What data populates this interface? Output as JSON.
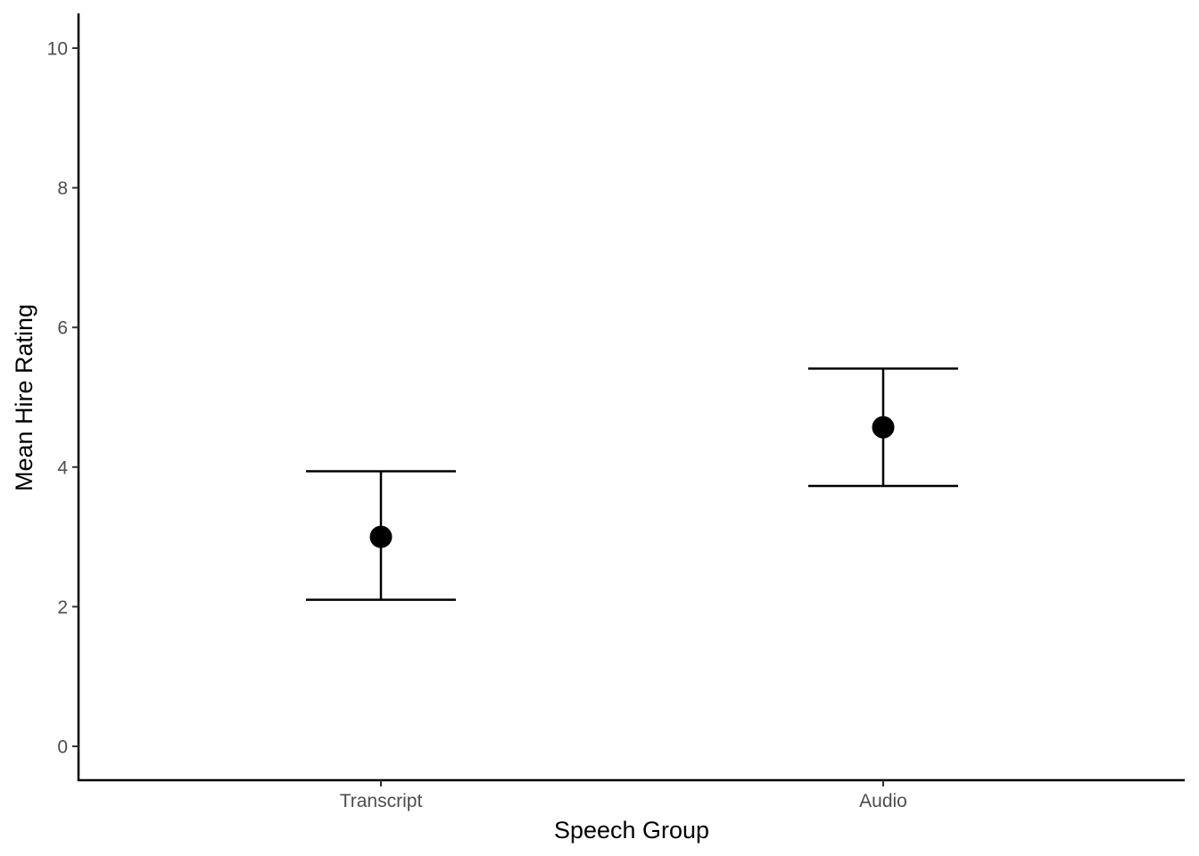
{
  "chart_data": {
    "type": "scatter",
    "subtype": "point-with-error-bars",
    "title": "",
    "xlabel": "Speech Group",
    "ylabel": "Mean Hire Rating",
    "categories": [
      "Transcript",
      "Audio"
    ],
    "values": [
      3.0,
      4.57
    ],
    "error_bars": [
      {
        "category": "Transcript",
        "lower": 2.1,
        "upper": 3.94
      },
      {
        "category": "Audio",
        "lower": 3.73,
        "upper": 5.41
      }
    ],
    "ylim": [
      -0.5,
      10.5
    ],
    "yticks": [
      0,
      2,
      4,
      6,
      8,
      10
    ],
    "grid": false,
    "legend": "none",
    "point_color": "#000000",
    "line_color": "#000000"
  }
}
